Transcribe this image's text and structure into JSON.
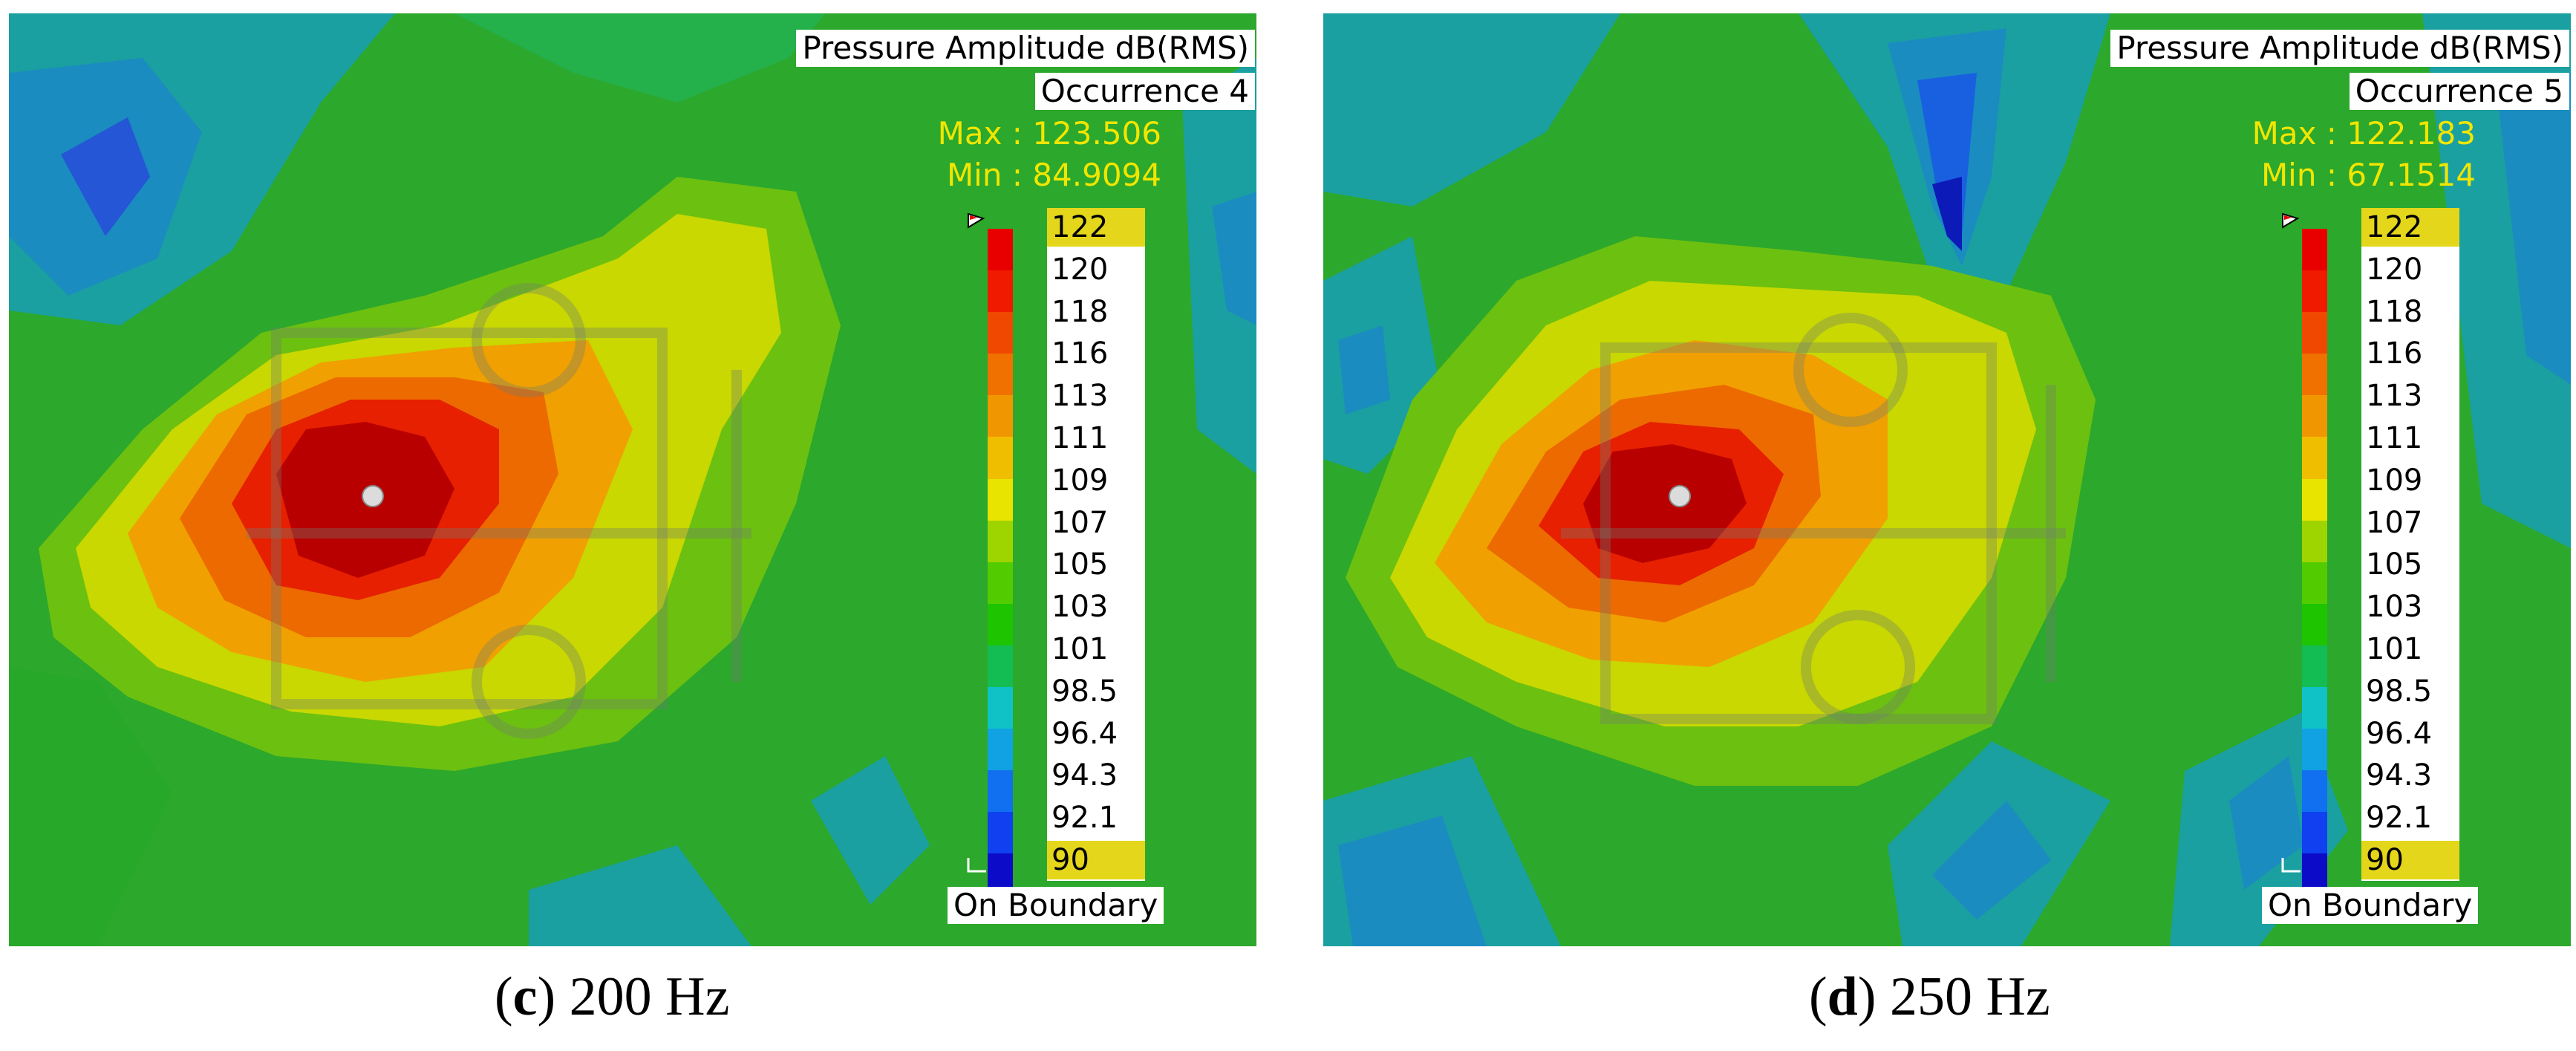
{
  "panels": [
    {
      "title": "Pressure Amplitude dB(RMS)",
      "occurrence": "Occurrence 4",
      "max_label": "Max : 123.506",
      "min_label": "Min : 84.9094",
      "boundary": "On Boundary",
      "caption_letter": "c",
      "caption_text": " 200 Hz",
      "ticks": [
        "122",
        "120",
        "118",
        "116",
        "113",
        "111",
        "109",
        "107",
        "105",
        "103",
        "101",
        "98.5",
        "96.4",
        "94.3",
        "92.1",
        "90"
      ]
    },
    {
      "title": "Pressure Amplitude dB(RMS)",
      "occurrence": "Occurrence 5",
      "max_label": "Max : 122.183",
      "min_label": "Min : 67.1514",
      "boundary": "On Boundary",
      "caption_letter": "d",
      "caption_text": " 250 Hz",
      "ticks": [
        "122",
        "120",
        "118",
        "116",
        "113",
        "111",
        "109",
        "107",
        "105",
        "103",
        "101",
        "98.5",
        "96.4",
        "94.3",
        "92.1",
        "90"
      ]
    }
  ],
  "colormap": [
    "#e80000",
    "#f01a00",
    "#f04800",
    "#f07000",
    "#f09600",
    "#f0be00",
    "#e8e400",
    "#9ed400",
    "#52cc00",
    "#1ec400",
    "#14bc54",
    "#10c2c6",
    "#10a2e2",
    "#1070f0",
    "#1040f0",
    "#0c0cc8"
  ],
  "colors": {
    "background_green": "#2ca82c",
    "teal": "#1aa0a0",
    "highlight": "#e4d61a",
    "max_min_text": "#f2e600"
  }
}
